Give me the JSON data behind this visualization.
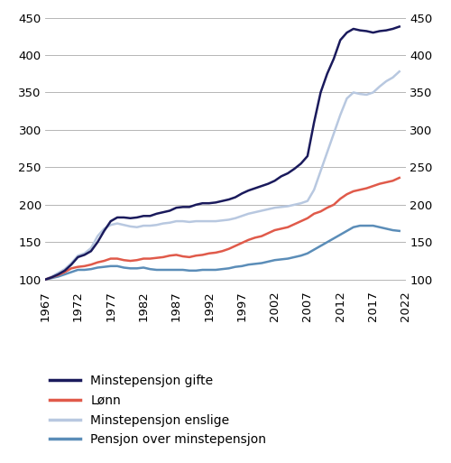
{
  "years": [
    1967,
    1968,
    1969,
    1970,
    1971,
    1972,
    1973,
    1974,
    1975,
    1976,
    1977,
    1978,
    1979,
    1980,
    1981,
    1982,
    1983,
    1984,
    1985,
    1986,
    1987,
    1988,
    1989,
    1990,
    1991,
    1992,
    1993,
    1994,
    1995,
    1996,
    1997,
    1998,
    1999,
    2000,
    2001,
    2002,
    2003,
    2004,
    2005,
    2006,
    2007,
    2008,
    2009,
    2010,
    2011,
    2012,
    2013,
    2014,
    2015,
    2016,
    2017,
    2018,
    2019,
    2020,
    2021
  ],
  "minstepensjon_gifte": [
    100,
    103,
    107,
    112,
    120,
    130,
    133,
    138,
    150,
    165,
    178,
    183,
    183,
    182,
    183,
    185,
    185,
    188,
    190,
    192,
    196,
    197,
    197,
    200,
    202,
    202,
    203,
    205,
    207,
    210,
    215,
    219,
    222,
    225,
    228,
    232,
    238,
    242,
    248,
    255,
    265,
    310,
    350,
    375,
    395,
    420,
    430,
    435,
    433,
    432,
    430,
    432,
    433,
    435,
    438
  ],
  "lonn": [
    100,
    103,
    106,
    110,
    115,
    117,
    118,
    120,
    123,
    125,
    128,
    128,
    126,
    125,
    126,
    128,
    128,
    129,
    130,
    132,
    133,
    131,
    130,
    132,
    133,
    135,
    136,
    138,
    141,
    145,
    149,
    153,
    156,
    158,
    162,
    166,
    168,
    170,
    174,
    178,
    182,
    188,
    191,
    196,
    200,
    208,
    214,
    218,
    220,
    222,
    225,
    228,
    230,
    232,
    236
  ],
  "minstepensjon_enslige": [
    100,
    104,
    109,
    114,
    122,
    132,
    135,
    142,
    158,
    168,
    173,
    175,
    173,
    171,
    170,
    172,
    172,
    173,
    175,
    176,
    178,
    178,
    177,
    178,
    178,
    178,
    178,
    179,
    180,
    182,
    185,
    188,
    190,
    192,
    194,
    196,
    197,
    198,
    200,
    202,
    205,
    220,
    245,
    270,
    295,
    320,
    342,
    350,
    348,
    347,
    350,
    358,
    365,
    370,
    378
  ],
  "pensjon_over_minstepensjon": [
    100,
    102,
    104,
    107,
    110,
    113,
    113,
    114,
    116,
    117,
    118,
    118,
    116,
    115,
    115,
    116,
    114,
    113,
    113,
    113,
    113,
    113,
    112,
    112,
    113,
    113,
    113,
    114,
    115,
    117,
    118,
    120,
    121,
    122,
    124,
    126,
    127,
    128,
    130,
    132,
    135,
    140,
    145,
    150,
    155,
    160,
    165,
    170,
    172,
    172,
    172,
    170,
    168,
    166,
    165
  ],
  "colors": {
    "minstepensjon_gifte": "#1a1a5c",
    "lonn": "#e05a4a",
    "minstepensjon_enslige": "#b8c8e0",
    "pensjon_over_minstepensjon": "#5b8db8"
  },
  "legend_labels": [
    "Minstepensjon gifte",
    "Lønn",
    "Minstepensjon enslige",
    "Pensjon over minstepensjon"
  ],
  "ylim": [
    90,
    455
  ],
  "yticks": [
    100,
    150,
    200,
    250,
    300,
    350,
    400,
    450
  ],
  "xticks": [
    1967,
    1972,
    1977,
    1982,
    1987,
    1992,
    1997,
    2002,
    2007,
    2012,
    2017,
    2022
  ],
  "xlim": [
    1967,
    2022
  ],
  "background_color": "#ffffff",
  "grid_color": "#aaaaaa",
  "linewidth": 1.8
}
